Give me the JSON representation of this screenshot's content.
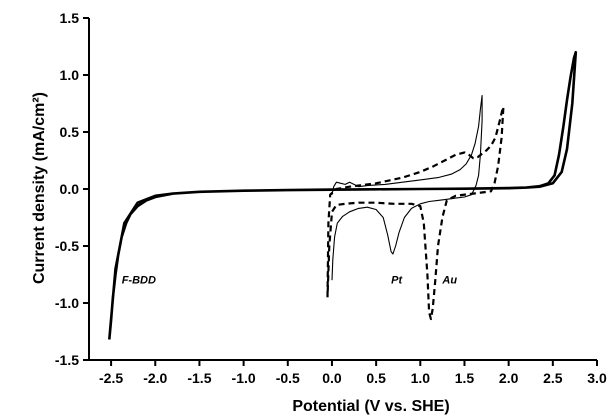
{
  "chart_data": {
    "type": "line",
    "title": "",
    "xlabel": "Potential (V vs. SHE)",
    "ylabel": "Current density (mA/cm²)",
    "xlim": [
      -2.75,
      3.0
    ],
    "ylim": [
      -1.5,
      1.5
    ],
    "xticks": [
      "-2.5",
      "-2.0",
      "-1.5",
      "-1.0",
      "-0.5",
      "0.0",
      "0.5",
      "1.0",
      "1.5",
      "2.0",
      "2.5",
      "3.0"
    ],
    "yticks": [
      "-1.5",
      "-1.0",
      "-0.5",
      "0.0",
      "0.5",
      "1.0",
      "1.5"
    ],
    "grid": false,
    "legend": "none",
    "annotations": [
      {
        "text": "F-BDD",
        "x": -2.38,
        "y": -0.83
      },
      {
        "text": "Pt",
        "x": 0.67,
        "y": -0.83
      },
      {
        "text": "Au",
        "x": 1.25,
        "y": -0.83
      }
    ],
    "series": [
      {
        "style": "thick-solid",
        "x": [
          -2.52,
          -2.5,
          -2.48,
          -2.45,
          -2.42,
          -2.38,
          -2.33,
          -2.28,
          -2.2,
          -2.1,
          -2.0,
          -1.8,
          -1.5,
          -1.0,
          -0.5,
          0.0,
          0.5,
          1.0,
          1.5,
          2.0,
          2.2,
          2.35,
          2.45,
          2.52,
          2.57,
          2.62,
          2.66,
          2.7,
          2.74,
          2.76,
          2.72,
          2.66,
          2.6,
          2.5,
          2.35,
          2.2,
          2.0,
          1.5,
          1.0,
          0.5,
          0.0,
          -0.5,
          -1.0,
          -1.5,
          -1.8,
          -2.0,
          -2.2,
          -2.35,
          -2.45,
          -2.52
        ],
        "y": [
          -1.32,
          -1.15,
          -0.95,
          -0.75,
          -0.58,
          -0.42,
          -0.3,
          -0.22,
          -0.15,
          -0.1,
          -0.07,
          -0.04,
          -0.025,
          -0.015,
          -0.01,
          -0.005,
          -0.003,
          0.0,
          0.003,
          0.008,
          0.013,
          0.025,
          0.05,
          0.12,
          0.3,
          0.55,
          0.78,
          0.98,
          1.15,
          1.2,
          0.75,
          0.35,
          0.15,
          0.05,
          0.02,
          0.012,
          0.007,
          0.003,
          0.0,
          -0.003,
          -0.006,
          -0.01,
          -0.015,
          -0.025,
          -0.04,
          -0.06,
          -0.12,
          -0.3,
          -0.7,
          -1.32
        ]
      },
      {
        "name": "Pt",
        "style": "thin-solid",
        "x": [
          0.0,
          0.02,
          0.05,
          0.1,
          0.15,
          0.2,
          0.25,
          0.3,
          0.4,
          0.6,
          0.8,
          1.0,
          1.2,
          1.35,
          1.45,
          1.52,
          1.58,
          1.62,
          1.66,
          1.68,
          1.7,
          1.7,
          1.68,
          1.66,
          1.63,
          1.58,
          1.5,
          1.4,
          1.3,
          1.2,
          1.1,
          1.0,
          0.9,
          0.82,
          0.76,
          0.72,
          0.69,
          0.67,
          0.63,
          0.58,
          0.5,
          0.4,
          0.3,
          0.2,
          0.12,
          0.06,
          0.03,
          0.01,
          0.0
        ],
        "y": [
          -0.05,
          0.02,
          0.06,
          0.05,
          0.04,
          0.06,
          0.04,
          0.02,
          0.03,
          0.04,
          0.06,
          0.08,
          0.1,
          0.13,
          0.17,
          0.22,
          0.3,
          0.4,
          0.55,
          0.7,
          0.82,
          0.6,
          0.3,
          0.12,
          0.03,
          -0.05,
          -0.07,
          -0.08,
          -0.09,
          -0.1,
          -0.11,
          -0.13,
          -0.17,
          -0.25,
          -0.38,
          -0.5,
          -0.57,
          -0.55,
          -0.4,
          -0.25,
          -0.18,
          -0.16,
          -0.17,
          -0.2,
          -0.24,
          -0.3,
          -0.42,
          -0.62,
          -0.8
        ]
      },
      {
        "name": "Au",
        "style": "thick-dashed",
        "x": [
          -0.05,
          -0.04,
          -0.02,
          0.05,
          0.2,
          0.5,
          0.8,
          1.0,
          1.15,
          1.3,
          1.4,
          1.5,
          1.55,
          1.6,
          1.65,
          1.7,
          1.75,
          1.8,
          1.85,
          1.9,
          1.93,
          1.94,
          1.92,
          1.88,
          1.84,
          1.8,
          1.6,
          1.4,
          1.3,
          1.25,
          1.2,
          1.17,
          1.14,
          1.12,
          1.1,
          1.08,
          1.04,
          1.0,
          0.9,
          0.7,
          0.5,
          0.3,
          0.15,
          0.05,
          0.0,
          -0.03,
          -0.05
        ],
        "y": [
          -0.95,
          -0.3,
          -0.05,
          0.0,
          0.02,
          0.05,
          0.1,
          0.15,
          0.2,
          0.26,
          0.3,
          0.32,
          0.3,
          0.27,
          0.28,
          0.31,
          0.34,
          0.38,
          0.45,
          0.6,
          0.7,
          0.72,
          0.45,
          0.2,
          0.05,
          -0.02,
          -0.04,
          -0.06,
          -0.1,
          -0.25,
          -0.5,
          -0.8,
          -1.05,
          -1.14,
          -1.08,
          -0.75,
          -0.3,
          -0.15,
          -0.13,
          -0.13,
          -0.12,
          -0.12,
          -0.13,
          -0.14,
          -0.2,
          -0.5,
          -0.95
        ]
      }
    ]
  }
}
